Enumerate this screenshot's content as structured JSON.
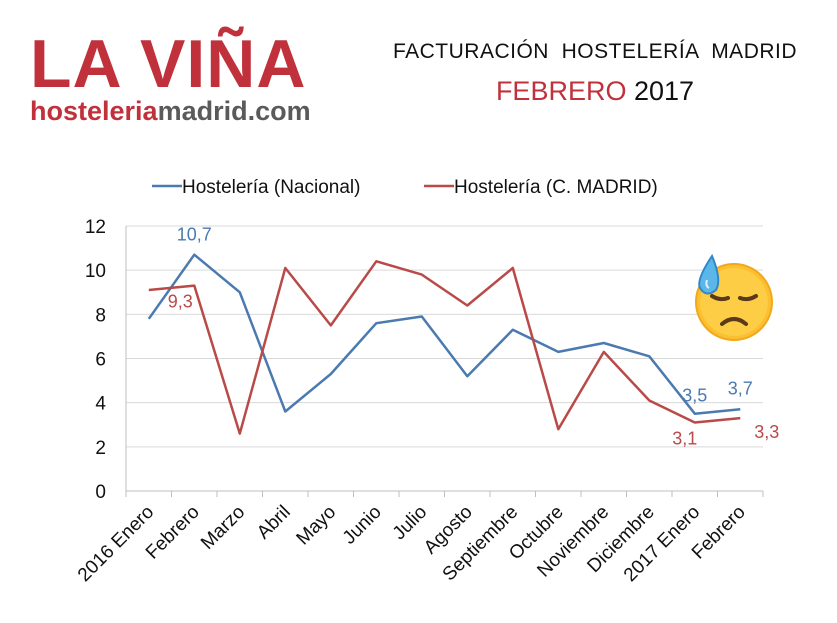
{
  "logo": {
    "brand": "LA VIÑA",
    "site_part1": "hosteleria",
    "site_part2": "madrid.com"
  },
  "header": {
    "title_line1": "FACTURACIÓN  HOSTELERÍA  MADRID",
    "title_month": "FEBRERO",
    "title_year": "2017"
  },
  "emoji": {
    "icon": "sad-sweat-face-icon"
  },
  "chart_data": {
    "type": "line",
    "categories": [
      "2016 Enero",
      "Febrero",
      "Marzo",
      "Abril",
      "Mayo",
      "Junio",
      "Julio",
      "Agosto",
      "Septiembre",
      "Octubre",
      "Noviembre",
      "Diciembre",
      "2017 Enero",
      "Febrero"
    ],
    "series": [
      {
        "name": "Hostelería (Nacional)",
        "color": "#4a7ab0",
        "values": [
          7.8,
          10.7,
          9.0,
          3.6,
          5.3,
          7.6,
          7.9,
          5.2,
          7.3,
          6.3,
          6.7,
          6.1,
          3.5,
          3.7
        ]
      },
      {
        "name": "Hostelería (C. MADRID)",
        "color": "#b94a48",
        "values": [
          9.1,
          9.3,
          2.6,
          10.1,
          7.5,
          10.4,
          9.8,
          8.4,
          10.1,
          2.8,
          6.3,
          4.1,
          3.1,
          3.3
        ]
      }
    ],
    "data_labels": [
      {
        "series": 0,
        "index": 1,
        "text": "10,7"
      },
      {
        "series": 1,
        "index": 1,
        "text": "9,3"
      },
      {
        "series": 0,
        "index": 12,
        "text": "3,5"
      },
      {
        "series": 0,
        "index": 13,
        "text": "3,7"
      },
      {
        "series": 1,
        "index": 12,
        "text": "3,1"
      },
      {
        "series": 1,
        "index": 13,
        "text": "3,3"
      }
    ],
    "y_ticks": [
      "0",
      "2",
      "4",
      "6",
      "8",
      "10",
      "12"
    ],
    "ylim": [
      0,
      12
    ],
    "grid": true,
    "legend_position": "top"
  }
}
